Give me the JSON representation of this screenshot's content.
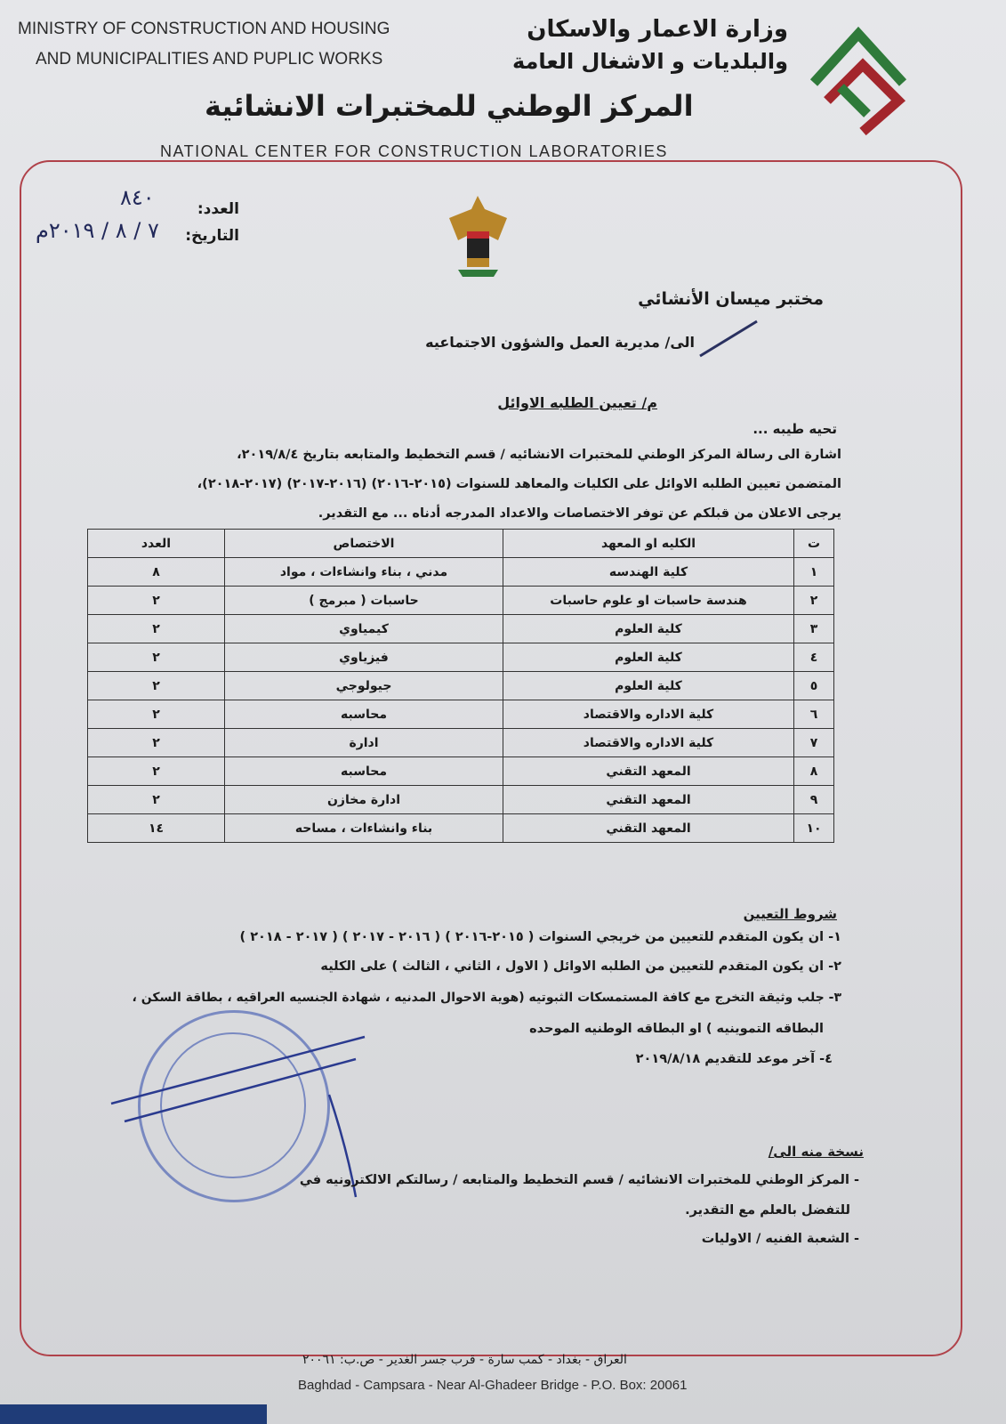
{
  "header": {
    "ministry_en_line1": "MINISTRY OF CONSTRUCTION AND HOUSING",
    "ministry_en_line2": "AND MUNICIPALITIES AND PUPLIC WORKS",
    "ministry_ar_line1": "وزارة الاعمار والاسكان",
    "ministry_ar_line2": "والبلديات و الاشغال العامة",
    "center_ar": "المركز الوطني للمختبرات الانشائية",
    "center_en": "NATIONAL CENTER FOR CONSTRUCTION LABORATORIES",
    "logo_icon": "ministry-logo-icon",
    "emblem_icon": "iraq-eagle-emblem-icon"
  },
  "meta": {
    "number_label": "العدد:",
    "number_value": "٨٤٠",
    "date_label": "التاريخ:",
    "date_value": "٧ / ٨ / ٢٠١٩م"
  },
  "recipient": {
    "lab": "مختبر ميسان الأنشائي",
    "to": "الى/ مديرية العمل والشؤون الاجتماعيه"
  },
  "subject": "م/ تعيين الطلبه الاوائل",
  "greeting": "تحيه طيبه ...",
  "body": [
    "اشارة الى رسالة المركز الوطني للمختبرات الانشائيه / قسم التخطيط والمتابعه بتاريخ ٢٠١٩/٨/٤،",
    "المتضمن تعيين الطلبه الاوائل على الكليات والمعاهد للسنوات (٢٠١٥-٢٠١٦) (٢٠١٦-٢٠١٧) (٢٠١٧-٢٠١٨)،",
    "يرجى الاعلان من قبلكم عن توفر الاختصاصات والاعداد المدرجه أدناه ... مع التقدير."
  ],
  "table": {
    "headers": [
      "ت",
      "الكليه او المعهد",
      "الاختصاص",
      "العدد"
    ],
    "rows": [
      [
        "١",
        "كلية الهندسه",
        "مدني ، بناء وانشاءات ، مواد",
        "٨"
      ],
      [
        "٢",
        "هندسة حاسبات او علوم حاسبات",
        "حاسبات ( مبرمج )",
        "٢"
      ],
      [
        "٣",
        "كلية العلوم",
        "كيمياوي",
        "٢"
      ],
      [
        "٤",
        "كلية العلوم",
        "فيزياوي",
        "٢"
      ],
      [
        "٥",
        "كلية العلوم",
        "جيولوجي",
        "٢"
      ],
      [
        "٦",
        "كلية الاداره والاقتصاد",
        "محاسبه",
        "٢"
      ],
      [
        "٧",
        "كلية الاداره والاقتصاد",
        "ادارة",
        "٢"
      ],
      [
        "٨",
        "المعهد التقني",
        "محاسبه",
        "٢"
      ],
      [
        "٩",
        "المعهد التقني",
        "ادارة مخازن",
        "٢"
      ],
      [
        "١٠",
        "المعهد التقني",
        "بناء وانشاءات ، مساحه",
        "١٤"
      ]
    ]
  },
  "conditions": {
    "title": "شروط التعيين",
    "items": [
      "١- ان يكون المتقدم للتعيين من خريجي السنوات ( ٢٠١٥-٢٠١٦ ) ( ٢٠١٦ - ٢٠١٧ ) ( ٢٠١٧ - ٢٠١٨ )",
      "٢- ان يكون المتقدم للتعيين من الطلبه الاوائل ( الاول ، الثاني ، الثالث ) على الكليه",
      "٣- جلب وثيقة التخرج مع كافة المستمسكات الثبوتيه (هوية الاحوال المدنيه ، شهادة الجنسيه العراقيه ، بطاقة السكن ،",
      "البطاقه التموينيه ) او البطاقه الوطنيه الموحده",
      "٤- آخر موعد للتقديم ٢٠١٩/٨/١٨"
    ]
  },
  "copies": {
    "title": "نسخة منه الى/",
    "items": [
      "- المركز الوطني للمختبرات الانشائيه / قسم التخطيط والمتابعه / رسالتكم الالكترونيه في",
      "للتفضل بالعلم مع التقدير.",
      "- الشعبة الفنيه / الاوليات"
    ]
  },
  "footer": {
    "address_ar": "العراق - بغداد - كمب سارة - قرب جسر الغدير - ص.ب: ٢٠٠٦١",
    "address_en": "Baghdad - Campsara - Near Al-Ghadeer Bridge - P.O. Box: 20061"
  },
  "colors": {
    "frame": "#b0424a",
    "stamp": "#5a6fb8",
    "logo_green": "#2f7a3a",
    "logo_red": "#a3262c"
  }
}
